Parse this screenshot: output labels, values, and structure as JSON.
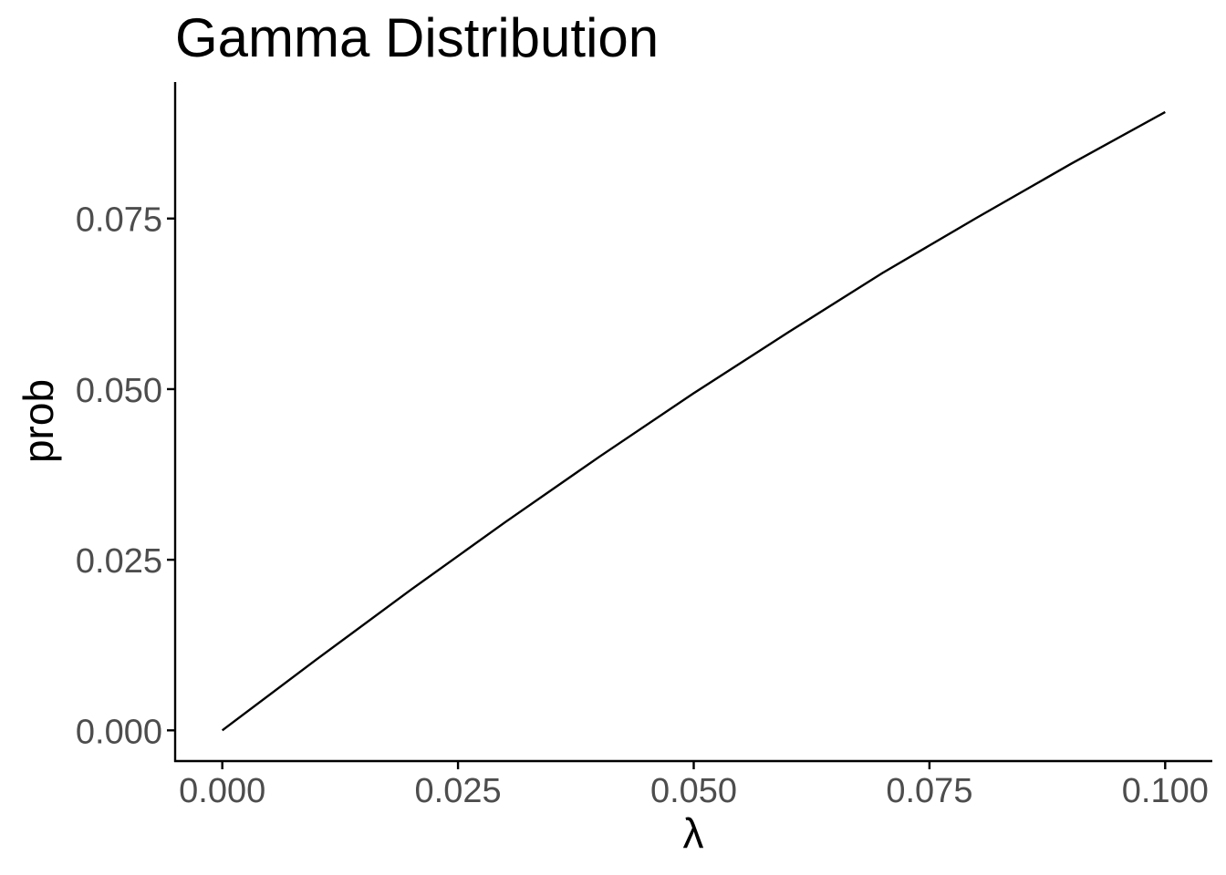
{
  "chart_data": {
    "type": "line",
    "title": "Gamma Distribution",
    "xlabel": "λ",
    "ylabel": "prob",
    "xlim": [
      -0.005,
      0.105
    ],
    "ylim": [
      -0.0045,
      0.095
    ],
    "x_ticks": [
      0.0,
      0.025,
      0.05,
      0.075,
      0.1
    ],
    "x_tick_labels": [
      "0.000",
      "0.025",
      "0.050",
      "0.075",
      "0.100"
    ],
    "y_ticks": [
      0.0,
      0.025,
      0.05,
      0.075
    ],
    "y_tick_labels": [
      "0.000",
      "0.025",
      "0.050",
      "0.075"
    ],
    "grid": false,
    "legend": "none",
    "series": [
      {
        "color": "#000000",
        "x": [
          0.0,
          0.01,
          0.02,
          0.03,
          0.04,
          0.05,
          0.06,
          0.07,
          0.08,
          0.09,
          0.1
        ],
        "y": [
          0.0,
          0.0104,
          0.0206,
          0.0305,
          0.0401,
          0.0494,
          0.0583,
          0.067,
          0.0751,
          0.083,
          0.0906
        ]
      }
    ]
  }
}
